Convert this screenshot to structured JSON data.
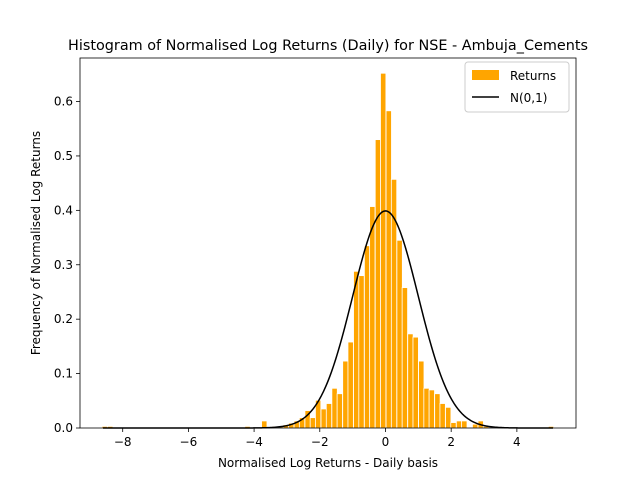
{
  "chart_data": {
    "type": "bar",
    "title": "Histogram of Normalised Log Returns (Daily) for NSE - Ambuja_Cements",
    "xlabel": "Normalised Log Returns - Daily basis",
    "ylabel": "Frequency of Normalised Log Returns",
    "xlim": [
      -9.3,
      5.8
    ],
    "ylim": [
      0,
      0.68
    ],
    "xticks": [
      -8,
      -6,
      -4,
      -2,
      0,
      2,
      4
    ],
    "xtick_labels": [
      "−8",
      "−6",
      "−4",
      "−2",
      "0",
      "2",
      "4"
    ],
    "yticks": [
      0.0,
      0.1,
      0.2,
      0.3,
      0.4,
      0.5,
      0.6
    ],
    "ytick_labels": [
      "0.0",
      "0.1",
      "0.2",
      "0.3",
      "0.4",
      "0.5",
      "0.6"
    ],
    "grid": false,
    "legend_position": "top-right",
    "bin_width": 0.1648,
    "bars": [
      {
        "x": -8.55,
        "y": 0.003
      },
      {
        "x": -8.38,
        "y": 0.003
      },
      {
        "x": -4.2,
        "y": 0.003
      },
      {
        "x": -3.69,
        "y": 0.013
      },
      {
        "x": -3.36,
        "y": 0.003
      },
      {
        "x": -3.2,
        "y": 0.003
      },
      {
        "x": -3.03,
        "y": 0.006
      },
      {
        "x": -2.87,
        "y": 0.009
      },
      {
        "x": -2.7,
        "y": 0.013
      },
      {
        "x": -2.54,
        "y": 0.019
      },
      {
        "x": -2.37,
        "y": 0.032
      },
      {
        "x": -2.21,
        "y": 0.019
      },
      {
        "x": -2.05,
        "y": 0.051
      },
      {
        "x": -1.88,
        "y": 0.035
      },
      {
        "x": -1.72,
        "y": 0.045
      },
      {
        "x": -1.55,
        "y": 0.073
      },
      {
        "x": -1.39,
        "y": 0.063
      },
      {
        "x": -1.22,
        "y": 0.123
      },
      {
        "x": -1.06,
        "y": 0.158
      },
      {
        "x": -0.89,
        "y": 0.288
      },
      {
        "x": -0.73,
        "y": 0.28
      },
      {
        "x": -0.56,
        "y": 0.335
      },
      {
        "x": -0.4,
        "y": 0.407
      },
      {
        "x": -0.23,
        "y": 0.53
      },
      {
        "x": -0.07,
        "y": 0.652
      },
      {
        "x": 0.1,
        "y": 0.583
      },
      {
        "x": 0.26,
        "y": 0.457
      },
      {
        "x": 0.43,
        "y": 0.345
      },
      {
        "x": 0.59,
        "y": 0.258
      },
      {
        "x": 0.76,
        "y": 0.173
      },
      {
        "x": 0.92,
        "y": 0.167
      },
      {
        "x": 1.09,
        "y": 0.123
      },
      {
        "x": 1.25,
        "y": 0.073
      },
      {
        "x": 1.41,
        "y": 0.07
      },
      {
        "x": 1.58,
        "y": 0.063
      },
      {
        "x": 1.74,
        "y": 0.045
      },
      {
        "x": 1.91,
        "y": 0.038
      },
      {
        "x": 2.07,
        "y": 0.01
      },
      {
        "x": 2.24,
        "y": 0.013
      },
      {
        "x": 2.4,
        "y": 0.013
      },
      {
        "x": 2.73,
        "y": 0.007
      },
      {
        "x": 2.9,
        "y": 0.013
      },
      {
        "x": 3.06,
        "y": 0.003
      },
      {
        "x": 5.04,
        "y": 0.003
      }
    ],
    "series": [
      {
        "name": "Returns",
        "kind": "histogram",
        "color": "#FFA500"
      },
      {
        "name": "N(0,1)",
        "kind": "line",
        "color": "#000000",
        "x_range": [
          -8.6,
          5.1
        ],
        "mean": 0,
        "std": 1
      }
    ]
  }
}
